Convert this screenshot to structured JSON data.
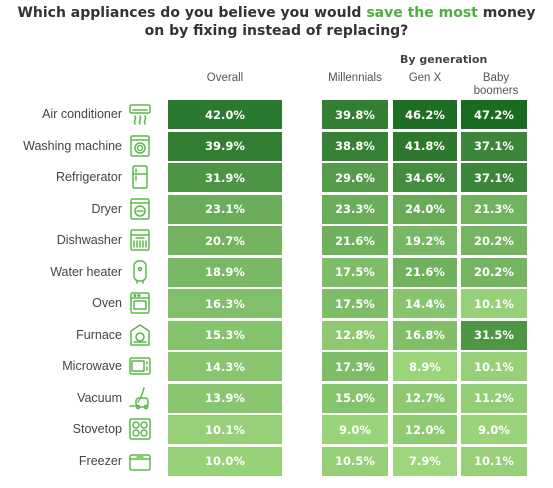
{
  "title": {
    "part1": "Which appliances do you believe you would ",
    "highlight": "save the most",
    "part2": " money",
    "line2": "on by fixing instead of replacing?"
  },
  "headers": {
    "overall": "Overall",
    "by_generation": "By generation",
    "millennials": "Millennials",
    "genx": "Gen X",
    "boomers_line1": "Baby",
    "boomers_line2": "boomers"
  },
  "colors": {
    "title_highlight": "#4caf3e",
    "scale_low": "#9ed67d",
    "scale_high": "#1a6b22",
    "icon_stroke": "#5cb84a"
  },
  "chart_data": {
    "type": "table",
    "title": "Which appliances do you believe you would save the most money on by fixing instead of replacing?",
    "columns": [
      "Overall",
      "Millennials",
      "Gen X",
      "Baby boomers"
    ],
    "rows": [
      {
        "appliance": "Air conditioner",
        "icon": "air-conditioner-icon",
        "values": [
          "42.0%",
          "39.8%",
          "46.2%",
          "47.2%"
        ]
      },
      {
        "appliance": "Washing machine",
        "icon": "washing-machine-icon",
        "values": [
          "39.9%",
          "38.8%",
          "41.8%",
          "37.1%"
        ]
      },
      {
        "appliance": "Refrigerator",
        "icon": "refrigerator-icon",
        "values": [
          "31.9%",
          "29.6%",
          "34.6%",
          "37.1%"
        ]
      },
      {
        "appliance": "Dryer",
        "icon": "dryer-icon",
        "values": [
          "23.1%",
          "23.3%",
          "24.0%",
          "21.3%"
        ]
      },
      {
        "appliance": "Dishwasher",
        "icon": "dishwasher-icon",
        "values": [
          "20.7%",
          "21.6%",
          "19.2%",
          "20.2%"
        ]
      },
      {
        "appliance": "Water heater",
        "icon": "water-heater-icon",
        "values": [
          "18.9%",
          "17.5%",
          "21.6%",
          "20.2%"
        ]
      },
      {
        "appliance": "Oven",
        "icon": "oven-icon",
        "values": [
          "16.3%",
          "17.5%",
          "14.4%",
          "10.1%"
        ]
      },
      {
        "appliance": "Furnace",
        "icon": "furnace-icon",
        "values": [
          "15.3%",
          "12.8%",
          "16.8%",
          "31.5%"
        ]
      },
      {
        "appliance": "Microwave",
        "icon": "microwave-icon",
        "values": [
          "14.3%",
          "17.3%",
          "8.9%",
          "10.1%"
        ]
      },
      {
        "appliance": "Vacuum",
        "icon": "vacuum-icon",
        "values": [
          "13.9%",
          "15.0%",
          "12.7%",
          "11.2%"
        ]
      },
      {
        "appliance": "Stovetop",
        "icon": "stovetop-icon",
        "values": [
          "10.1%",
          "9.0%",
          "12.0%",
          "9.0%"
        ]
      },
      {
        "appliance": "Freezer",
        "icon": "freezer-icon",
        "values": [
          "10.0%",
          "10.5%",
          "7.9%",
          "10.1%"
        ]
      }
    ]
  }
}
